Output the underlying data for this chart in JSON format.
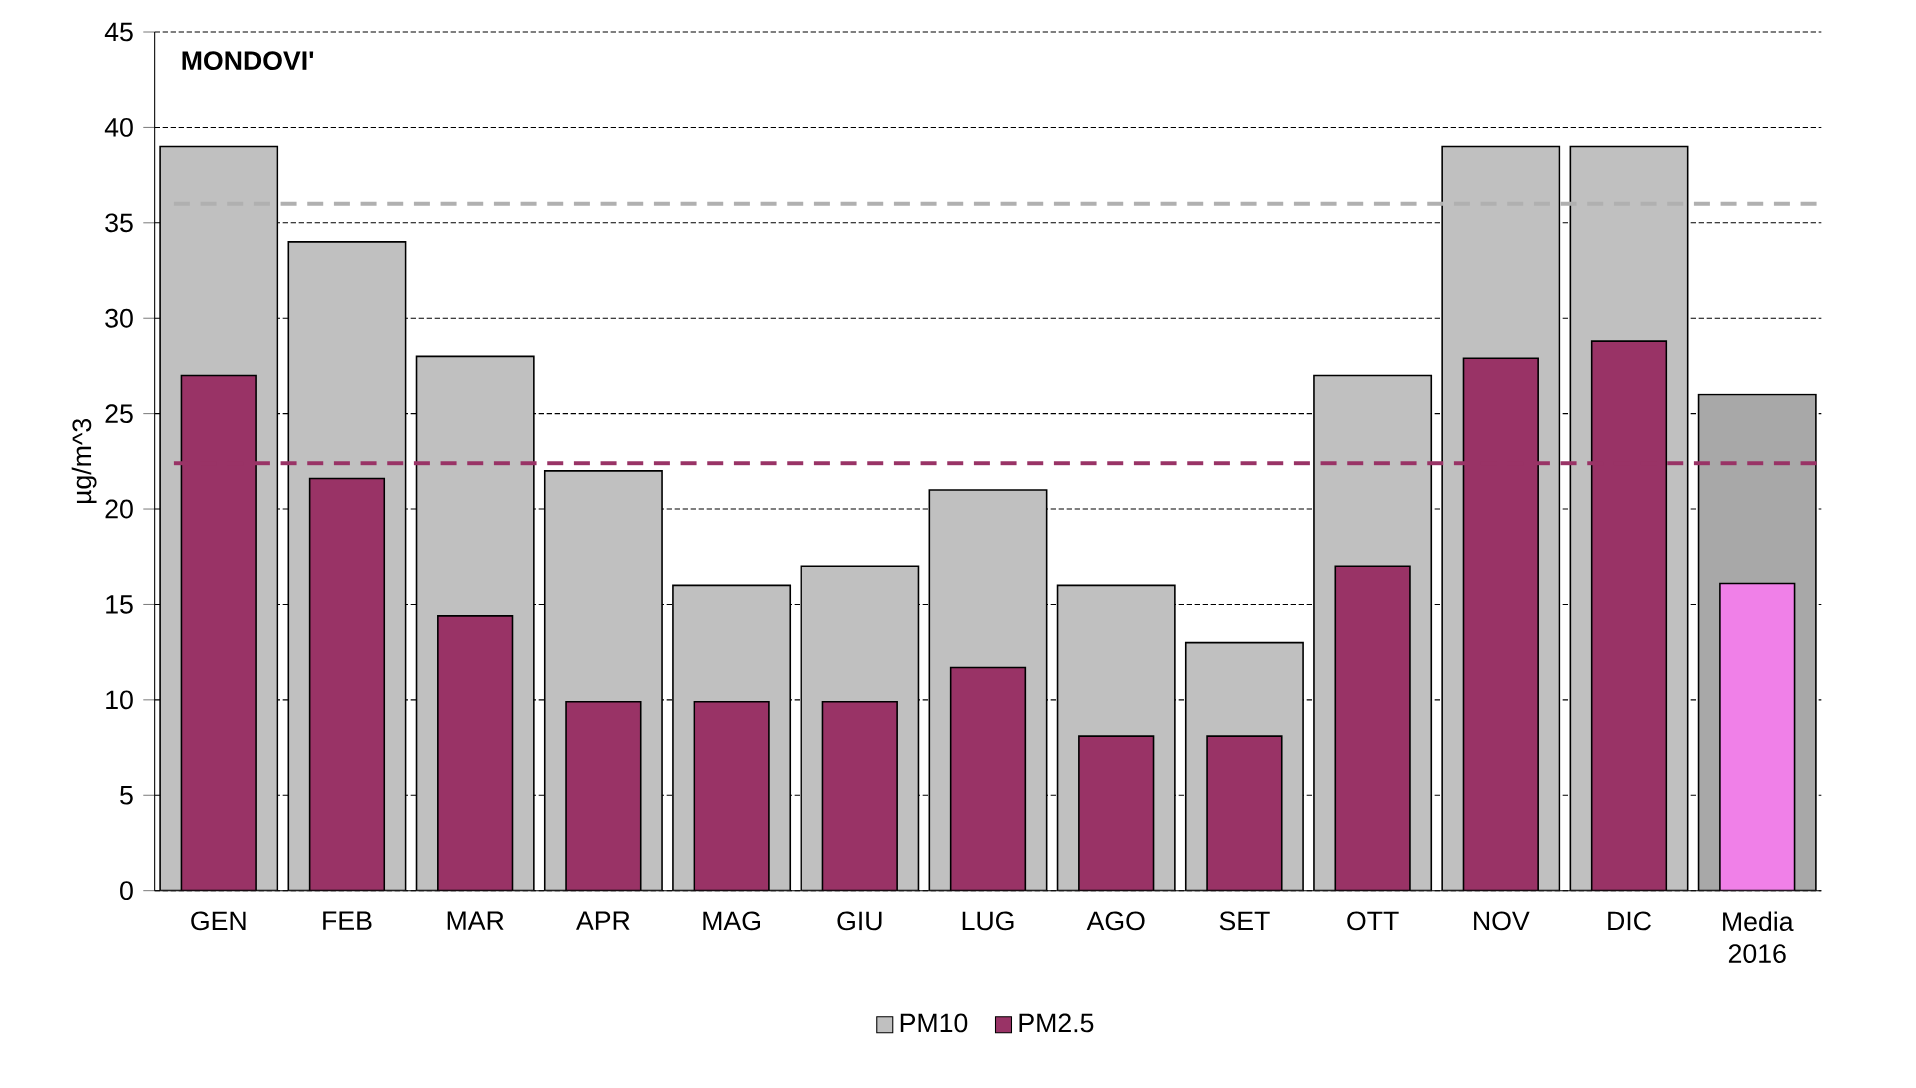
{
  "chart_data": {
    "type": "bar",
    "title": "MONDOVI'",
    "ylabel": "µg/m^3",
    "categories": [
      "GEN",
      "FEB",
      "MAR",
      "APR",
      "MAG",
      "GIU",
      "LUG",
      "AGO",
      "SET",
      "OTT",
      "NOV",
      "DIC",
      "Media 2016"
    ],
    "series": [
      {
        "name": "PM10",
        "color": "#c0c0c0",
        "colors": [
          "#c0c0c0",
          "#c0c0c0",
          "#c0c0c0",
          "#c0c0c0",
          "#c0c0c0",
          "#c0c0c0",
          "#c0c0c0",
          "#c0c0c0",
          "#c0c0c0",
          "#c0c0c0",
          "#c0c0c0",
          "#c0c0c0",
          "#a8a8a8"
        ],
        "values": [
          39,
          34,
          28,
          22,
          16,
          17,
          21,
          16,
          13,
          27,
          39,
          39,
          26
        ]
      },
      {
        "name": "PM2.5",
        "color": "#993366",
        "colors": [
          "#993366",
          "#993366",
          "#993366",
          "#993366",
          "#993366",
          "#993366",
          "#993366",
          "#993366",
          "#993366",
          "#993366",
          "#993366",
          "#993366",
          "#f080e8"
        ],
        "values": [
          27,
          21.6,
          14.4,
          9.9,
          9.9,
          9.9,
          11.7,
          8.1,
          8.1,
          17,
          27.9,
          28.8,
          16.1
        ]
      }
    ],
    "ylim": [
      0,
      45
    ],
    "yticks": [
      0,
      5,
      10,
      15,
      20,
      25,
      30,
      35,
      40,
      45
    ],
    "grid": "y",
    "legend": "bottom",
    "ref_lines": [
      {
        "axis": "y",
        "value": 36,
        "color": "#b0b0b0",
        "line_style": "dashed"
      },
      {
        "axis": "y",
        "value": 22.4,
        "color": "#993366",
        "line_style": "dashed"
      }
    ]
  }
}
